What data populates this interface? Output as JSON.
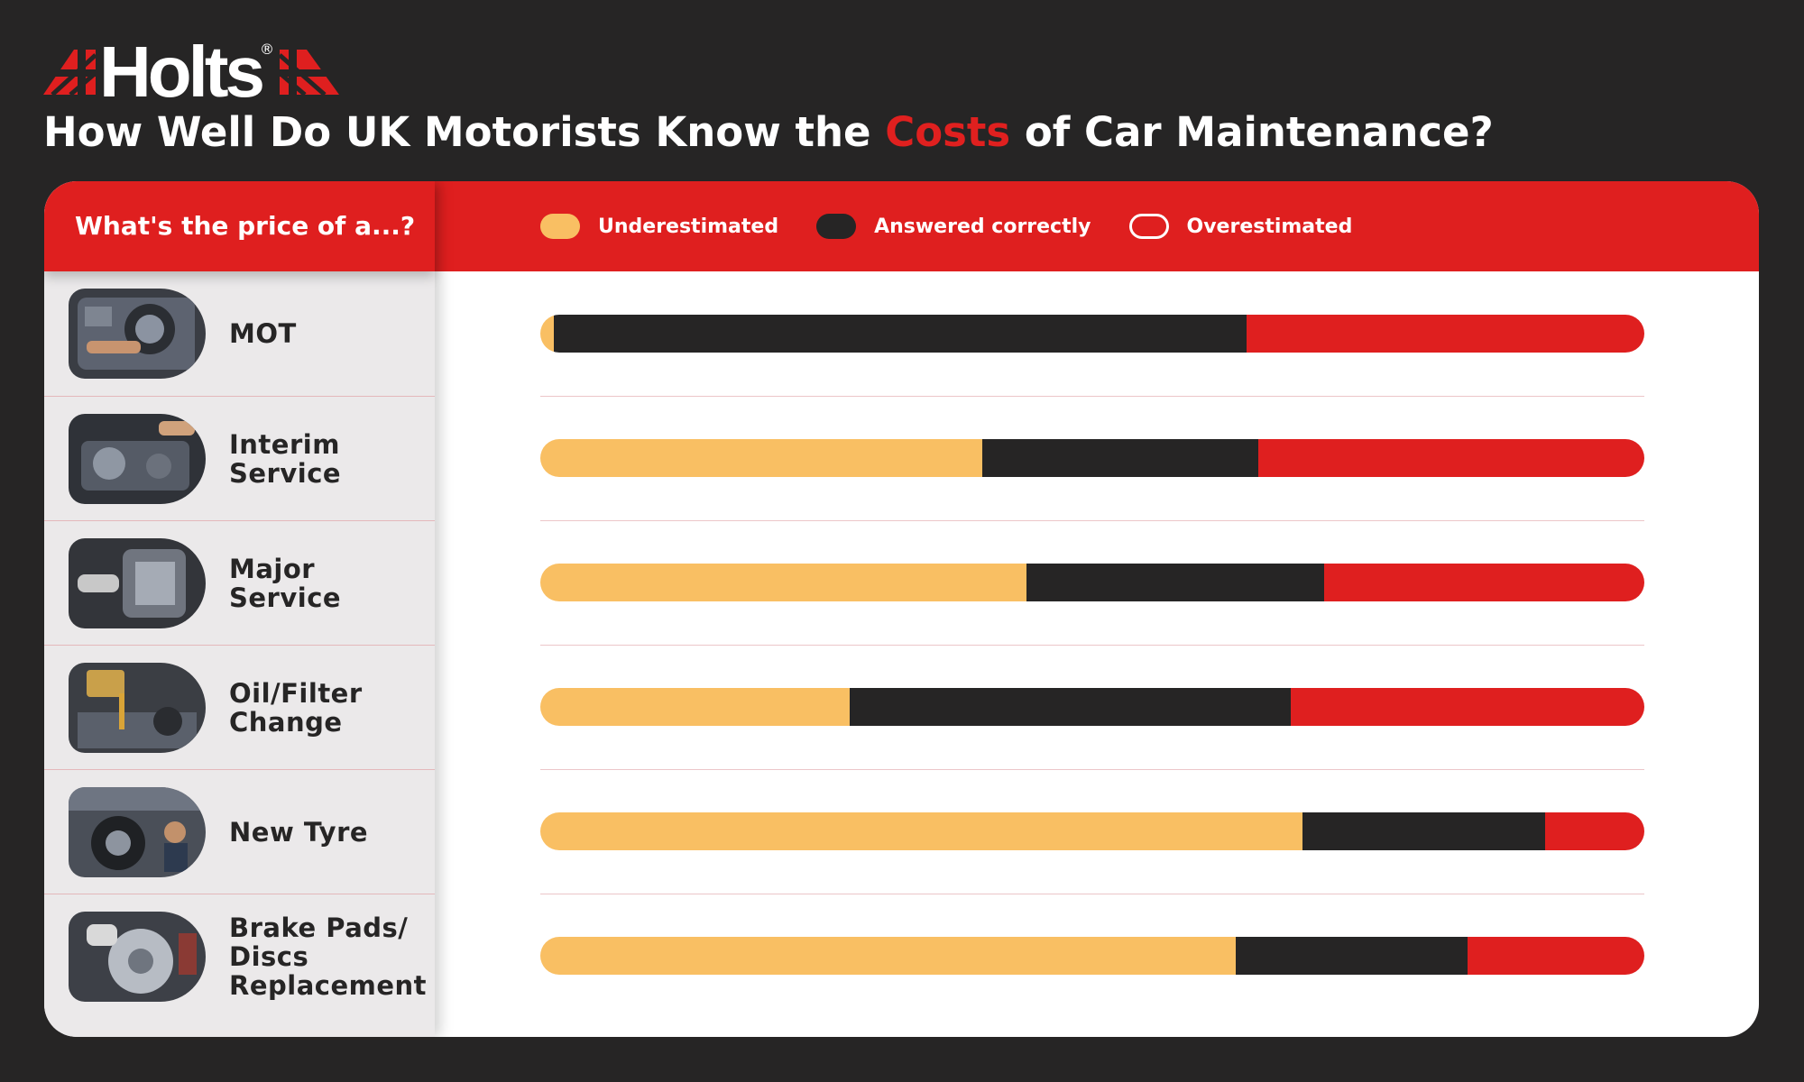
{
  "brand": {
    "name": "Holts",
    "registered_mark": "®"
  },
  "headline": {
    "before": "How Well Do UK Motorists Know the ",
    "accent": "Costs",
    "after": " of Car Maintenance?"
  },
  "colors": {
    "background": "#262525",
    "brand_red": "#df1f1f",
    "underestimated": "#f9bf63",
    "correct": "#262525",
    "overestimated": "#df1f1f"
  },
  "chart_data": {
    "type": "bar",
    "orientation": "horizontal",
    "stacked": "100%",
    "title": "How Well Do UK Motorists Know the Costs of Car Maintenance?",
    "category_header": "What's the price of a...?",
    "categories": [
      "MOT",
      "Interim\nService",
      "Major\nService",
      "Oil/Filter\nChange",
      "New Tyre",
      "Brake Pads/\nDiscs\nReplacement"
    ],
    "series": [
      {
        "name": "Underestimated",
        "color": "#f9bf63",
        "values": [
          1.2,
          40,
          44,
          28,
          69,
          63
        ]
      },
      {
        "name": "Answered correctly",
        "color": "#262525",
        "values": [
          62.8,
          25,
          27,
          40,
          22,
          21
        ]
      },
      {
        "name": "Overestimated",
        "color": "#df1f1f",
        "values": [
          36,
          35,
          29,
          32,
          9,
          16
        ]
      }
    ],
    "xlim": [
      0,
      100
    ],
    "legend": "top"
  }
}
